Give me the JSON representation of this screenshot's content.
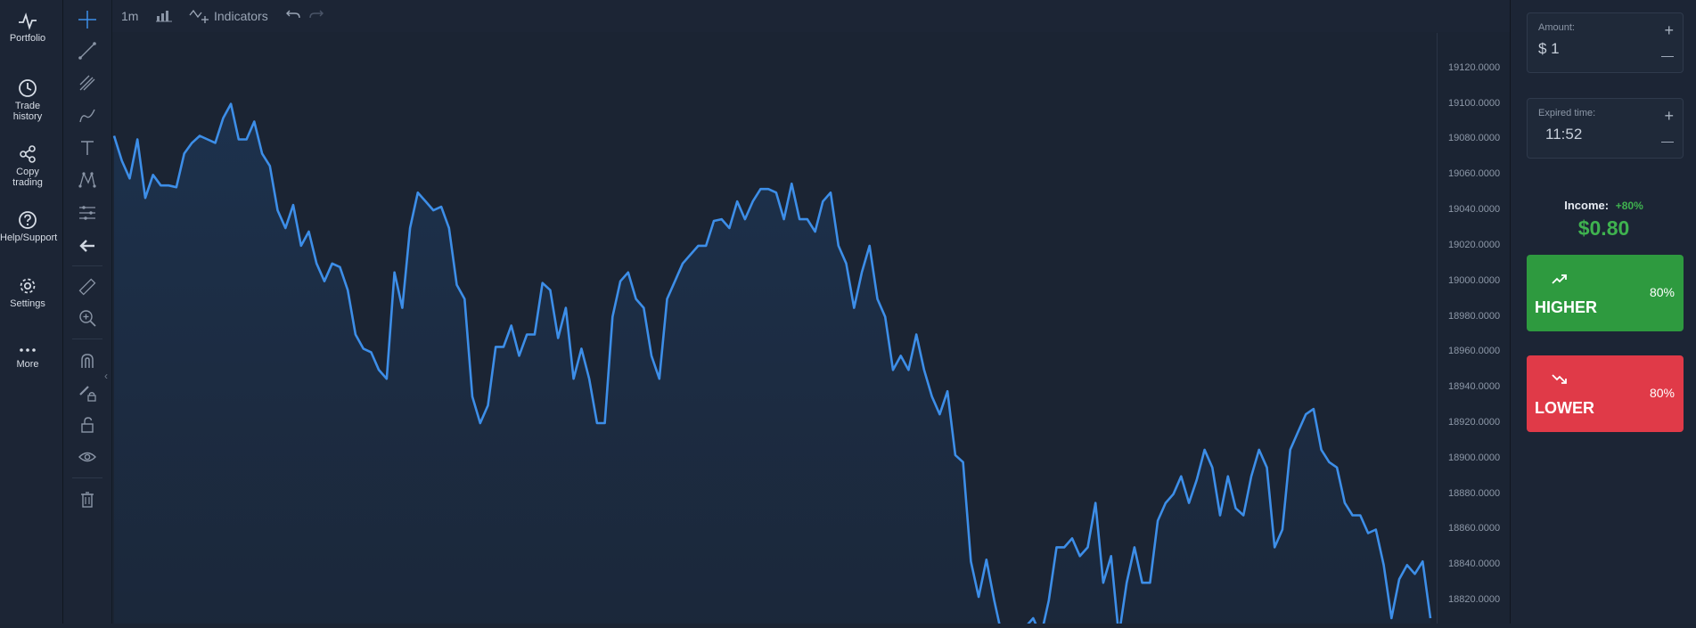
{
  "sidebar": {
    "items": [
      {
        "label": "Portfolio",
        "icon": "pulse-icon"
      },
      {
        "label": "Trade history",
        "icon": "clock-icon"
      },
      {
        "label": "Copy trading",
        "icon": "share-icon"
      },
      {
        "label": "Help/Support",
        "icon": "question-icon"
      },
      {
        "label": "Settings",
        "icon": "gear-icon"
      },
      {
        "label": "More",
        "icon": "dots-icon"
      }
    ]
  },
  "toolbar": {
    "timeframe": "1m",
    "indicators_label": "Indicators"
  },
  "chart_data": {
    "type": "line",
    "yaxis_ticks": [
      "19120.0000",
      "19100.0000",
      "19080.0000",
      "19060.0000",
      "19040.0000",
      "19020.0000",
      "19000.0000",
      "18980.0000",
      "18960.0000",
      "18940.0000",
      "18920.0000",
      "18900.0000",
      "18880.0000",
      "18860.0000",
      "18840.0000",
      "18820.0000"
    ],
    "ylim": [
      18807,
      19140
    ],
    "values": [
      19082,
      19068,
      19058,
      19080,
      19047,
      19060,
      19054,
      19054,
      19053,
      19072,
      19078,
      19082,
      19080,
      19078,
      19092,
      19100,
      19080,
      19080,
      19090,
      19072,
      19065,
      19040,
      19030,
      19043,
      19020,
      19028,
      19010,
      19000,
      19010,
      19008,
      18995,
      18970,
      18962,
      18960,
      18950,
      18945,
      19005,
      18985,
      19030,
      19050,
      19045,
      19040,
      19042,
      19030,
      18998,
      18990,
      18935,
      18920,
      18930,
      18963,
      18963,
      18975,
      18958,
      18970,
      18970,
      18999,
      18995,
      18968,
      18985,
      18945,
      18962,
      18945,
      18920,
      18920,
      18980,
      19000,
      19005,
      18990,
      18985,
      18958,
      18945,
      18990,
      19000,
      19010,
      19015,
      19020,
      19020,
      19034,
      19035,
      19030,
      19045,
      19035,
      19045,
      19052,
      19052,
      19050,
      19035,
      19055,
      19035,
      19035,
      19028,
      19045,
      19050,
      19020,
      19010,
      18985,
      19005,
      19020,
      18990,
      18980,
      18950,
      18958,
      18950,
      18970,
      18950,
      18935,
      18925,
      18938,
      18902,
      18898,
      18842,
      18822,
      18843,
      18820,
      18800,
      18800,
      18800,
      18805,
      18810,
      18800,
      18820,
      18850,
      18850,
      18855,
      18845,
      18850,
      18875,
      18830,
      18845,
      18800,
      18830,
      18850,
      18830,
      18830,
      18865,
      18875,
      18880,
      18890,
      18875,
      18888,
      18905,
      18895,
      18868,
      18890,
      18872,
      18868,
      18890,
      18905,
      18895,
      18850,
      18860,
      18905,
      18915,
      18925,
      18928,
      18905,
      18898,
      18895,
      18875,
      18868,
      18868,
      18858,
      18860,
      18840,
      18810,
      18832,
      18840,
      18835,
      18842,
      18810
    ]
  },
  "trade": {
    "amount_label": "Amount:",
    "amount_value": "$ 1",
    "expire_label": "Expired time:",
    "expire_value": "11:52",
    "plus": "+",
    "minus": "—",
    "income_label": "Income:",
    "income_pct": "+80%",
    "income_value": "$0.80",
    "higher_label": "HIGHER",
    "higher_pct": "80%",
    "lower_label": "LOWER",
    "lower_pct": "80%"
  },
  "colors": {
    "line": "#3d8ee8",
    "higher": "#2e9a3f",
    "lower": "#e03a48",
    "income": "#3fb24f"
  }
}
